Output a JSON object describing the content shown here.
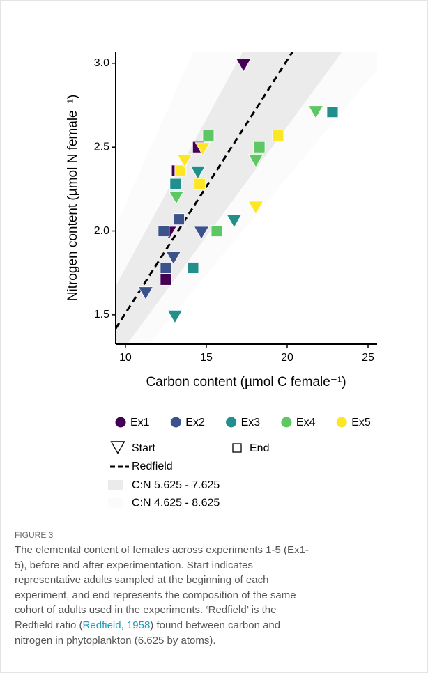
{
  "chart_data": {
    "type": "scatter",
    "x_label": "Carbon content (µmol C female⁻¹)",
    "y_label": "Nitrogen content (µmol N female⁻¹)",
    "xlim": [
      9.4,
      25.56
    ],
    "ylim": [
      1.325,
      3.07
    ],
    "xticks": [
      10,
      15,
      20,
      25
    ],
    "yticks": [
      {
        "value": 1.5,
        "label": "1.5"
      },
      {
        "value": 2,
        "label": "2.0"
      },
      {
        "value": 2.5,
        "label": "2.5"
      },
      {
        "value": 3,
        "label": "3.0"
      }
    ],
    "grid": false,
    "series": [
      {
        "name": "Ex1",
        "color": "#440154",
        "start": {
          "x": [
            17.3,
            12.7
          ],
          "y": [
            2.99,
            1.99
          ]
        },
        "end": {
          "x": [
            13.2,
            14.5,
            12.5
          ],
          "y": [
            2.36,
            2.5,
            1.71
          ]
        }
      },
      {
        "name": "Ex2",
        "color": "#3b528b",
        "start": {
          "x": [
            11.25,
            12.97,
            14.7
          ],
          "y": [
            1.63,
            1.84,
            1.99
          ]
        },
        "end": {
          "x": [
            13.3,
            12.37,
            12.5
          ],
          "y": [
            2.07,
            2.0,
            1.78
          ]
        }
      },
      {
        "name": "Ex3",
        "color": "#21908d",
        "start": {
          "x": [
            13.06,
            16.72,
            14.48
          ],
          "y": [
            1.49,
            2.06,
            2.35
          ]
        },
        "end": {
          "x": [
            22.8,
            14.18,
            13.1
          ],
          "y": [
            2.71,
            1.78,
            2.28
          ]
        }
      },
      {
        "name": "Ex4",
        "color": "#5dc863",
        "start": {
          "x": [
            13.15,
            18.06,
            21.77
          ],
          "y": [
            2.2,
            2.42,
            2.71
          ]
        },
        "end": {
          "x": [
            15.13,
            18.28,
            15.65
          ],
          "y": [
            2.57,
            2.5,
            2.0
          ]
        }
      },
      {
        "name": "Ex5",
        "color": "#fde725",
        "start": {
          "x": [
            13.66,
            14.78,
            18.06
          ],
          "y": [
            2.42,
            2.49,
            2.14
          ]
        },
        "end": {
          "x": [
            13.4,
            14.6,
            19.44
          ],
          "y": [
            2.36,
            2.28,
            2.57
          ]
        }
      }
    ],
    "shapes": {
      "start": "Start",
      "end": "End"
    },
    "redfield": {
      "label": "Redfield",
      "ratio": 6.625
    },
    "bands": [
      {
        "label": "C:N 4.625 - 8.625",
        "low": 4.625,
        "high": 8.625,
        "color": "#fbfbfb"
      },
      {
        "label": "C:N 5.625 - 7.625",
        "low": 5.625,
        "high": 7.625,
        "color": "#ebebeb"
      }
    ]
  },
  "caption": {
    "figure": "FIGURE 3",
    "lines": [
      "The elemental content of females across experiments 1-5 (Ex1-",
      "5), before and after experimentation. Start indicates",
      "representative adults sampled at the beginning of each",
      "experiment, and end represents the composition of the same",
      "cohort of adults used in the experiments. ‘Redfield’ is the"
    ],
    "line6_before": "Redfield ratio (",
    "link": "Redfield, 1958",
    "line6_after": ") found between carbon and",
    "last_line": "nitrogen in phytoplankton (6.625 by atoms)."
  }
}
